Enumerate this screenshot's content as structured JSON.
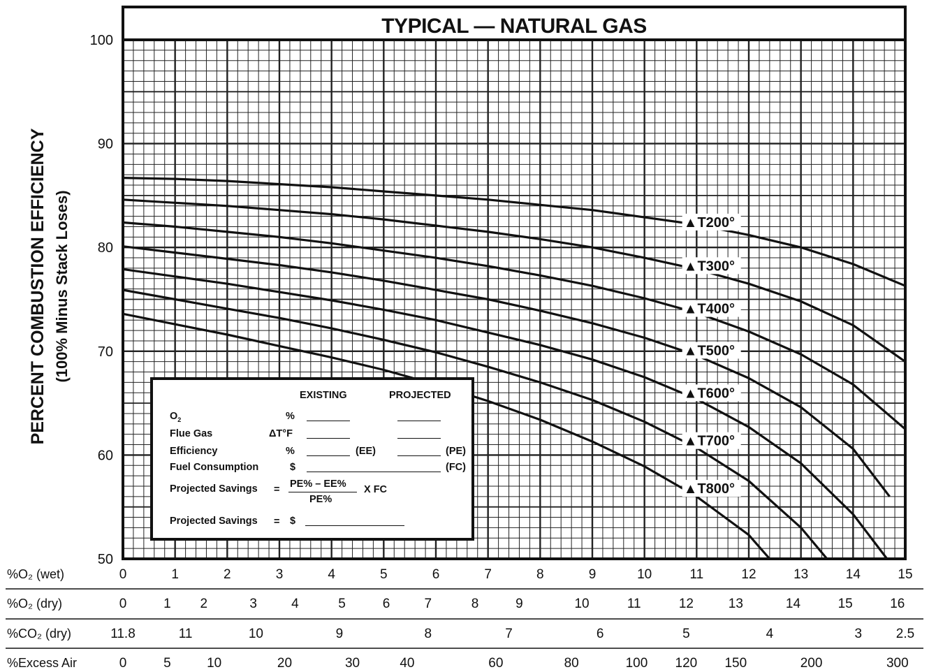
{
  "chart_data": {
    "type": "line",
    "title": "TYPICAL — NATURAL GAS",
    "ylabel": "PERCENT COMBUSTION EFFICIENCY",
    "ylabel_sub": "(100% Minus Stack Loses)",
    "ylim": [
      50,
      100
    ],
    "yticks": [
      100,
      90,
      80,
      70,
      60,
      50
    ],
    "xlim": [
      0,
      15
    ],
    "grid": true,
    "x_axes": [
      {
        "label": "%O₂ (wet)",
        "ticks": [
          {
            "x": 0,
            "t": "0"
          },
          {
            "x": 1,
            "t": "1"
          },
          {
            "x": 2,
            "t": "2"
          },
          {
            "x": 3,
            "t": "3"
          },
          {
            "x": 4,
            "t": "4"
          },
          {
            "x": 5,
            "t": "5"
          },
          {
            "x": 6,
            "t": "6"
          },
          {
            "x": 7,
            "t": "7"
          },
          {
            "x": 8,
            "t": "8"
          },
          {
            "x": 9,
            "t": "9"
          },
          {
            "x": 10,
            "t": "10"
          },
          {
            "x": 11,
            "t": "11"
          },
          {
            "x": 12,
            "t": "12"
          },
          {
            "x": 13,
            "t": "13"
          },
          {
            "x": 14,
            "t": "14"
          },
          {
            "x": 15,
            "t": "15"
          }
        ]
      },
      {
        "label": "%O₂ (dry)",
        "ticks": [
          {
            "x": 0,
            "t": "0"
          },
          {
            "x": 0.85,
            "t": "1"
          },
          {
            "x": 1.55,
            "t": "2"
          },
          {
            "x": 2.5,
            "t": "3"
          },
          {
            "x": 3.3,
            "t": "4"
          },
          {
            "x": 4.2,
            "t": "5"
          },
          {
            "x": 5.05,
            "t": "6"
          },
          {
            "x": 5.85,
            "t": "7"
          },
          {
            "x": 6.75,
            "t": "8"
          },
          {
            "x": 7.6,
            "t": "9"
          },
          {
            "x": 8.8,
            "t": "10"
          },
          {
            "x": 9.8,
            "t": "11"
          },
          {
            "x": 10.8,
            "t": "12"
          },
          {
            "x": 11.75,
            "t": "13"
          },
          {
            "x": 12.85,
            "t": "14"
          },
          {
            "x": 13.85,
            "t": "15"
          },
          {
            "x": 14.85,
            "t": "16"
          }
        ]
      },
      {
        "label": "%CO₂ (dry)",
        "ticks": [
          {
            "x": 0,
            "t": "11.8"
          },
          {
            "x": 1.2,
            "t": "11"
          },
          {
            "x": 2.55,
            "t": "10"
          },
          {
            "x": 4.15,
            "t": "9"
          },
          {
            "x": 5.85,
            "t": "8"
          },
          {
            "x": 7.4,
            "t": "7"
          },
          {
            "x": 9.15,
            "t": "6"
          },
          {
            "x": 10.8,
            "t": "5"
          },
          {
            "x": 12.4,
            "t": "4"
          },
          {
            "x": 14.1,
            "t": "3"
          },
          {
            "x": 15,
            "t": "2.5"
          }
        ]
      },
      {
        "label": "%Excess Air",
        "ticks": [
          {
            "x": 0,
            "t": "0"
          },
          {
            "x": 0.85,
            "t": "5"
          },
          {
            "x": 1.75,
            "t": "10"
          },
          {
            "x": 3.1,
            "t": "20"
          },
          {
            "x": 4.4,
            "t": "30"
          },
          {
            "x": 5.45,
            "t": "40"
          },
          {
            "x": 7.15,
            "t": "60"
          },
          {
            "x": 8.6,
            "t": "80"
          },
          {
            "x": 9.85,
            "t": "100"
          },
          {
            "x": 10.8,
            "t": "120"
          },
          {
            "x": 11.75,
            "t": "150"
          },
          {
            "x": 13.2,
            "t": "200"
          },
          {
            "x": 14.85,
            "t": "300"
          }
        ]
      }
    ],
    "series": [
      {
        "name": "▲T200°",
        "x": [
          0,
          1,
          2,
          3,
          4,
          5,
          6,
          7,
          8,
          9,
          10,
          11,
          12,
          13,
          14,
          15
        ],
        "y": [
          86.7,
          86.6,
          86.4,
          86.1,
          85.8,
          85.4,
          85.0,
          84.6,
          84.1,
          83.6,
          82.9,
          82.2,
          81.2,
          80.0,
          78.4,
          76.3
        ]
      },
      {
        "name": "▲T300°",
        "x": [
          0,
          1,
          2,
          3,
          4,
          5,
          6,
          7,
          8,
          9,
          10,
          11,
          12,
          13,
          14,
          15
        ],
        "y": [
          84.6,
          84.3,
          84.0,
          83.6,
          83.2,
          82.7,
          82.1,
          81.5,
          80.8,
          80.0,
          79.0,
          77.9,
          76.5,
          74.8,
          72.5,
          69.0
        ]
      },
      {
        "name": "▲T400°",
        "x": [
          0,
          1,
          2,
          3,
          4,
          5,
          6,
          7,
          8,
          9,
          10,
          11,
          12,
          13,
          14,
          15
        ],
        "y": [
          82.4,
          82.0,
          81.5,
          81.0,
          80.4,
          79.7,
          79.0,
          78.2,
          77.3,
          76.3,
          75.1,
          73.7,
          71.9,
          69.7,
          66.8,
          62.5
        ]
      },
      {
        "name": "▲T500°",
        "x": [
          0,
          1,
          2,
          3,
          4,
          5,
          6,
          7,
          8,
          9,
          10,
          11,
          12,
          13,
          14,
          14.7
        ],
        "y": [
          80.1,
          79.5,
          78.9,
          78.3,
          77.6,
          76.8,
          75.9,
          75.0,
          73.9,
          72.7,
          71.3,
          69.6,
          67.4,
          64.6,
          60.6,
          56.0
        ]
      },
      {
        "name": "▲T600°",
        "x": [
          0,
          1,
          2,
          3,
          4,
          5,
          6,
          7,
          8,
          9,
          10,
          11,
          12,
          13,
          14,
          14.65
        ],
        "y": [
          77.9,
          77.2,
          76.5,
          75.7,
          74.9,
          74.0,
          73.0,
          71.8,
          70.6,
          69.2,
          67.5,
          65.4,
          62.7,
          59.2,
          54.3,
          50.0
        ]
      },
      {
        "name": "▲T700°",
        "x": [
          0,
          1,
          2,
          3,
          4,
          5,
          6,
          7,
          8,
          9,
          10,
          11,
          12,
          13,
          13.5
        ],
        "y": [
          75.9,
          75.0,
          74.1,
          73.2,
          72.2,
          71.1,
          69.9,
          68.5,
          67.0,
          65.3,
          63.2,
          60.7,
          57.5,
          53.0,
          50.0
        ]
      },
      {
        "name": "▲T800°",
        "x": [
          0,
          1,
          2,
          3,
          4,
          5,
          6,
          7,
          8,
          9,
          10,
          11,
          12,
          12.4
        ],
        "y": [
          73.6,
          72.6,
          71.6,
          70.5,
          69.4,
          68.2,
          66.8,
          65.2,
          63.4,
          61.3,
          58.9,
          56.0,
          52.3,
          50.0
        ]
      }
    ]
  },
  "worksheet": {
    "col_existing": "EXISTING",
    "col_projected": "PROJECTED",
    "row_o2": "O",
    "row_o2_sub": "2",
    "row_o2_unit": "%",
    "row_flue": "Flue Gas",
    "row_flue_unit": "ΔT°F",
    "row_eff": "Efficiency",
    "row_eff_unit": "%",
    "tag_ee": "(EE)",
    "tag_pe": "(PE)",
    "row_fuel": "Fuel Consumption",
    "row_fuel_unit": "$",
    "tag_fc": "(FC)",
    "row_savings": "Projected Savings",
    "eq": "=",
    "numerator": "PE% – EE%",
    "denominator": "PE%",
    "times_fc": "X FC",
    "row_savings2": "Projected Savings",
    "eq2": "=",
    "dollar2": "$"
  }
}
